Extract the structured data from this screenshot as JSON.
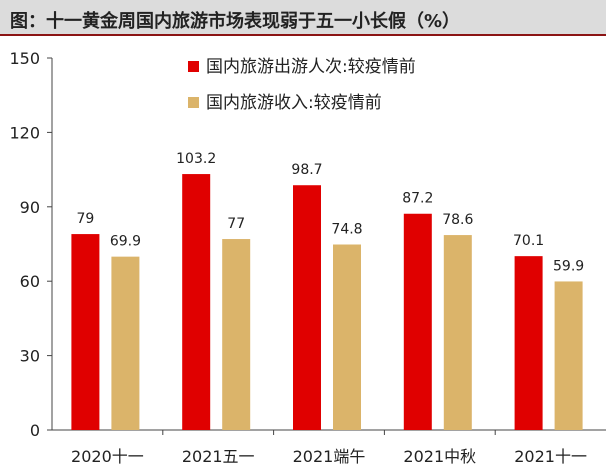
{
  "chart_data": {
    "type": "bar",
    "title": "图：十一黄金周国内旅游市场表现弱于五一小长假（%）",
    "categories": [
      "2020十一",
      "2021五一",
      "2021端午",
      "2021中秋",
      "2021十一"
    ],
    "series": [
      {
        "name": "国内旅游出游人次:较疫情前",
        "color": "#e00000",
        "values": [
          79,
          103.2,
          98.7,
          87.2,
          70.1
        ]
      },
      {
        "name": "国内旅游收入:较疫情前",
        "color": "#dbb46a",
        "values": [
          69.9,
          77,
          74.8,
          78.6,
          59.9
        ]
      }
    ],
    "yticks": [
      0,
      30,
      60,
      90,
      120,
      150
    ],
    "ylim": [
      0,
      150
    ],
    "xlabel": "",
    "ylabel": "",
    "grid": false,
    "legend": "top-right"
  }
}
